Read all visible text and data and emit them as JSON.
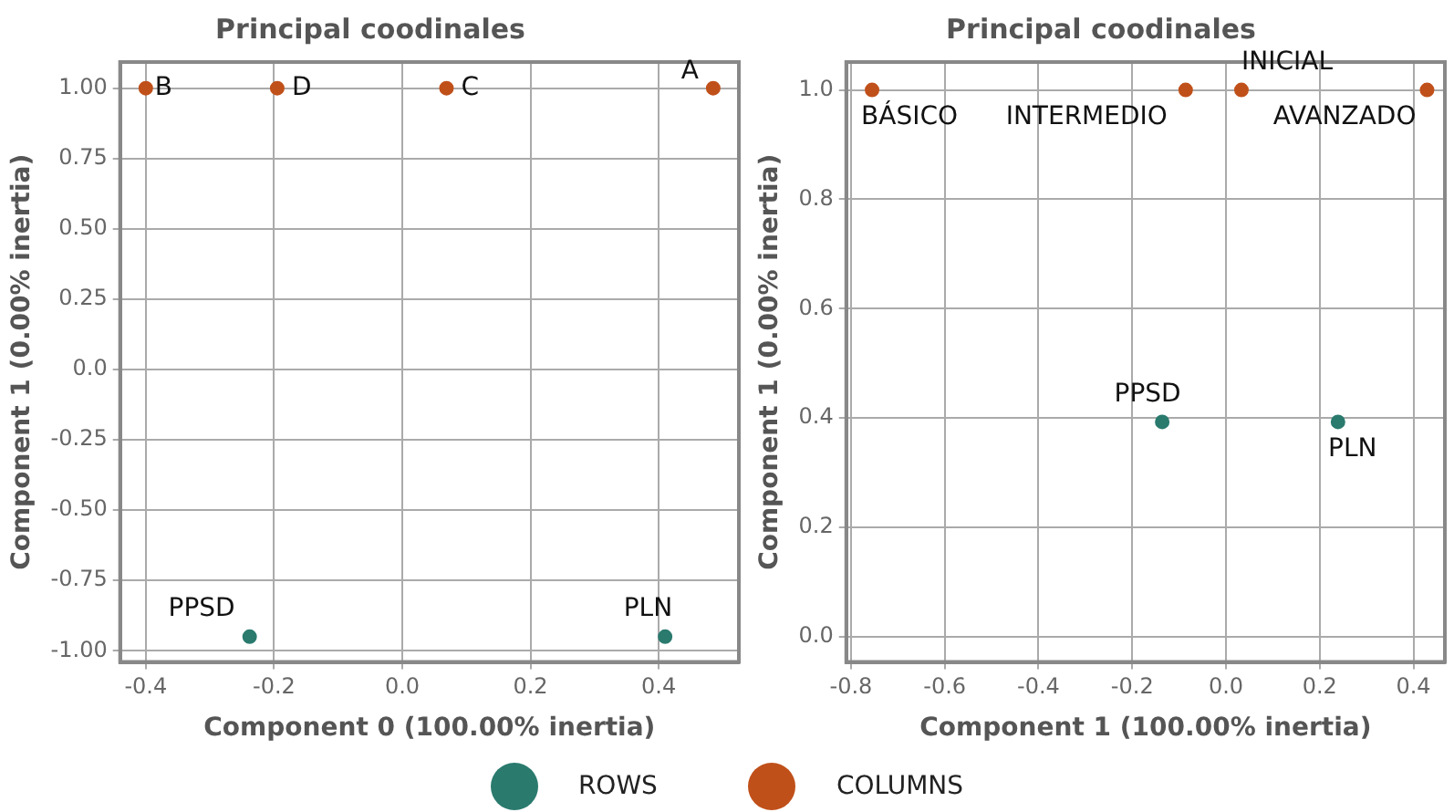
{
  "chart_data": [
    {
      "type": "scatter",
      "title": "Principal coodinales",
      "xlabel": "Component 0 (100.00% inertia)",
      "ylabel": "Component 1 (0.00% inertia)",
      "series": [
        {
          "name": "ROWS",
          "color": "#2a7a6e",
          "x": [
            -0.238,
            0.41
          ],
          "values": [
            -0.95,
            -0.95
          ]
        },
        {
          "name": "COLUMNS",
          "color": "#c0501a",
          "x": [
            0.485,
            -0.4,
            0.069,
            -0.195
          ],
          "values": [
            1.0,
            1.0,
            1.0,
            1.0
          ]
        }
      ],
      "annotations": [
        {
          "text": "PPSD",
          "x": -0.238,
          "y": -0.95
        },
        {
          "text": "PLN",
          "x": 0.41,
          "y": -0.95
        },
        {
          "text": "A",
          "x": 0.485,
          "y": 1.0
        },
        {
          "text": "B",
          "x": -0.4,
          "y": 1.0
        },
        {
          "text": "C",
          "x": 0.069,
          "y": 1.0
        },
        {
          "text": "D",
          "x": -0.195,
          "y": 1.0
        }
      ],
      "xlim": [
        -0.44,
        0.525
      ],
      "ylim": [
        -1.04,
        1.093
      ],
      "xticks": [
        -0.4,
        -0.2,
        {
          "value": 0,
          "label": "0.0"
        },
        0.2,
        0.4
      ],
      "yticks": [
        {
          "value": -1,
          "label": "-1.00"
        },
        -0.75,
        {
          "value": -0.5,
          "label": "-0.50"
        },
        -0.25,
        {
          "value": 0,
          "label": "0.0"
        },
        0.25,
        {
          "value": 0.5,
          "label": "0.50"
        },
        0.75,
        {
          "value": 1,
          "label": "1.00"
        }
      ],
      "grid": true,
      "legend": "bottom",
      "marker": "circle"
    },
    {
      "type": "scatter",
      "title": "Principal coodinales",
      "xlabel": "Component 1 (100.00% inertia)",
      "ylabel": "Component 1 (0.00% inertia)",
      "series": [
        {
          "name": "ROWS",
          "color": "#2a7a6e",
          "x": [
            -0.136,
            0.239
          ],
          "values": [
            0.393,
            0.393
          ]
        },
        {
          "name": "COLUMNS",
          "color": "#c0501a",
          "x": [
            0.429,
            -0.755,
            0.033,
            -0.086
          ],
          "values": [
            1.0,
            1.0,
            1.0,
            1.0
          ]
        }
      ],
      "annotations": [
        {
          "text": "PPSD",
          "x": -0.136,
          "y": 0.393
        },
        {
          "text": "PLN",
          "x": 0.239,
          "y": 0.393
        },
        {
          "text": "AVANZADO",
          "x": 0.429,
          "y": 1.0
        },
        {
          "text": "BÁSICO",
          "x": -0.755,
          "y": 1.0
        },
        {
          "text": "INICIAL",
          "x": 0.033,
          "y": 1.0
        },
        {
          "text": "INTERMEDIO",
          "x": -0.086,
          "y": 1.0
        }
      ],
      "xlim": [
        -0.81,
        0.467
      ],
      "ylim": [
        -0.046,
        1.051
      ],
      "xticks": [
        -0.8,
        -0.6,
        -0.4,
        -0.2,
        {
          "value": 0,
          "label": "0.0"
        },
        0.2,
        0.4
      ],
      "yticks": [
        {
          "value": 0,
          "label": "0.0"
        },
        0.2,
        0.4,
        0.6,
        0.8,
        {
          "value": 1,
          "label": "1.0"
        }
      ],
      "grid": true,
      "legend": "bottom",
      "marker": "circle"
    }
  ]
}
